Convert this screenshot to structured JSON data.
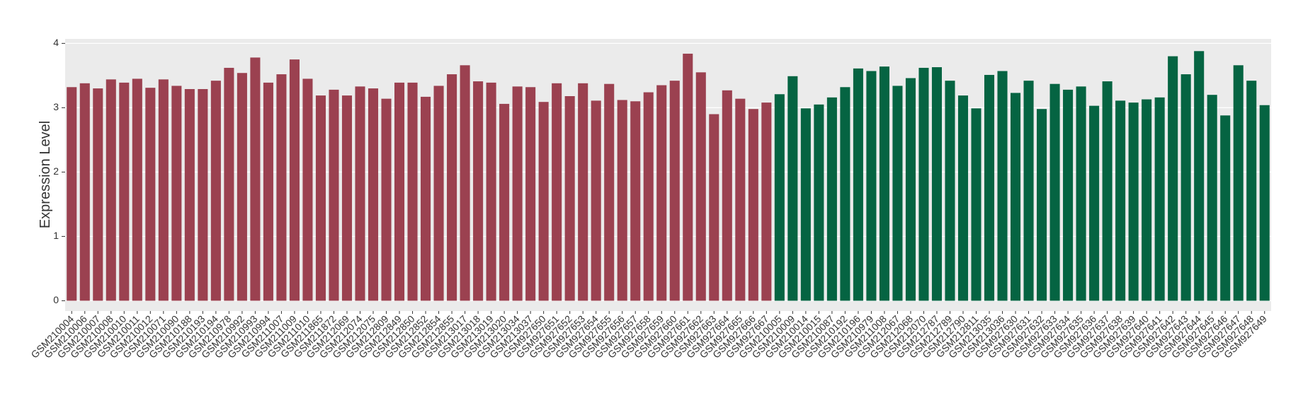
{
  "chart_data": {
    "type": "bar",
    "y_label": "Expression Level",
    "categories": [
      "GSM210004",
      "GSM210006",
      "GSM210007",
      "GSM210008",
      "GSM210010",
      "GSM210011",
      "GSM210012",
      "GSM210071",
      "GSM210090",
      "GSM210188",
      "GSM210193",
      "GSM210194",
      "GSM210978",
      "GSM210992",
      "GSM210993",
      "GSM210994",
      "GSM211007",
      "GSM211009",
      "GSM211010",
      "GSM211865",
      "GSM211872",
      "GSM212069",
      "GSM212074",
      "GSM212075",
      "GSM212809",
      "GSM212849",
      "GSM212850",
      "GSM212852",
      "GSM212854",
      "GSM212855",
      "GSM213017",
      "GSM213018",
      "GSM213019",
      "GSM213020",
      "GSM213034",
      "GSM213037",
      "GSM927650",
      "GSM927651",
      "GSM927652",
      "GSM927653",
      "GSM927654",
      "GSM927655",
      "GSM927656",
      "GSM927657",
      "GSM927658",
      "GSM927659",
      "GSM927660",
      "GSM927661",
      "GSM927662",
      "GSM927663",
      "GSM927664",
      "GSM927665",
      "GSM927666",
      "GSM927667",
      "GSM210005",
      "GSM210009",
      "GSM210014",
      "GSM210015",
      "GSM210087",
      "GSM210192",
      "GSM210196",
      "GSM210979",
      "GSM211008",
      "GSM212067",
      "GSM212068",
      "GSM212070",
      "GSM212787",
      "GSM212789",
      "GSM212790",
      "GSM212811",
      "GSM213035",
      "GSM213036",
      "GSM927630",
      "GSM927631",
      "GSM927632",
      "GSM927633",
      "GSM927634",
      "GSM927635",
      "GSM927636",
      "GSM927637",
      "GSM927638",
      "GSM927639",
      "GSM927640",
      "GSM927641",
      "GSM927642",
      "GSM927643",
      "GSM927644",
      "GSM927645",
      "GSM927646",
      "GSM927647",
      "GSM927648",
      "GSM927649"
    ],
    "series": [
      {
        "color": "#9b4150",
        "values": [
          3.32,
          3.38,
          3.3,
          3.44,
          3.39,
          3.45,
          3.31,
          3.44,
          3.34,
          3.29,
          3.29,
          3.42,
          3.62,
          3.54,
          3.78,
          3.39,
          3.52,
          3.75,
          3.45,
          3.19,
          3.28,
          3.19,
          3.33,
          3.3,
          3.14,
          3.39,
          3.39,
          3.17,
          3.34,
          3.52,
          3.66,
          3.41,
          3.39,
          3.06,
          3.33,
          3.32,
          3.09,
          3.38,
          3.18,
          3.38,
          3.11,
          3.37,
          3.12,
          3.1,
          3.24,
          3.35,
          3.42,
          3.84,
          3.55,
          2.9,
          3.27,
          3.14,
          2.98,
          3.08,
          null,
          null,
          null,
          null,
          null,
          null,
          null,
          null,
          null,
          null,
          null,
          null,
          null,
          null,
          null,
          null,
          null,
          null,
          null,
          null,
          null,
          null,
          null,
          null,
          null,
          null,
          null,
          null,
          null,
          null,
          null,
          null,
          null,
          null,
          null,
          null,
          null,
          null
        ]
      },
      {
        "color": "#056442",
        "values": [
          null,
          null,
          null,
          null,
          null,
          null,
          null,
          null,
          null,
          null,
          null,
          null,
          null,
          null,
          null,
          null,
          null,
          null,
          null,
          null,
          null,
          null,
          null,
          null,
          null,
          null,
          null,
          null,
          null,
          null,
          null,
          null,
          null,
          null,
          null,
          null,
          null,
          null,
          null,
          null,
          null,
          null,
          null,
          null,
          null,
          null,
          null,
          null,
          null,
          null,
          null,
          null,
          null,
          null,
          3.21,
          3.49,
          2.99,
          3.05,
          3.16,
          3.32,
          3.61,
          3.57,
          3.64,
          3.34,
          3.46,
          3.62,
          3.63,
          3.42,
          3.19,
          2.99,
          3.51,
          3.57,
          3.23,
          3.42,
          2.98,
          3.37,
          3.28,
          3.33,
          3.03,
          3.41,
          3.11,
          3.08,
          3.13,
          3.16,
          3.8,
          3.52,
          3.88,
          3.2,
          2.88,
          3.66,
          3.42,
          3.04
        ]
      }
    ],
    "ylim": [
      -0.16,
      4.07
    ],
    "yticks": [
      0,
      1,
      2,
      3,
      4
    ],
    "grid": true
  }
}
